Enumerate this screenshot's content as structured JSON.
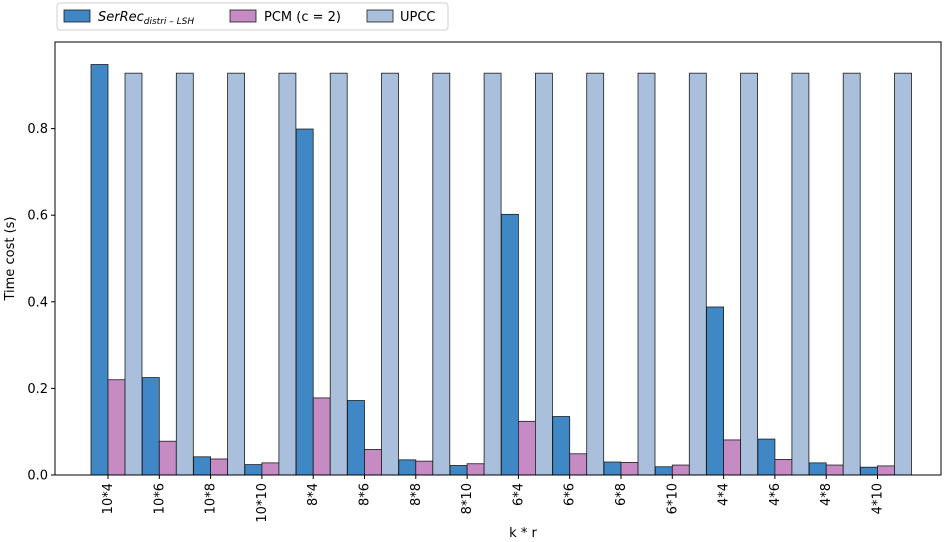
{
  "chart_data": {
    "type": "bar",
    "title": "",
    "xlabel": "k * r",
    "ylabel": "Time cost (s)",
    "ylim": [
      0,
      1.0
    ],
    "yticks": [
      "0.0",
      "0.2",
      "0.4",
      "0.6",
      "0.8"
    ],
    "categories": [
      "10*4",
      "10*6",
      "10*8",
      "10*10",
      "8*4",
      "8*6",
      "8*8",
      "8*10",
      "6*4",
      "6*6",
      "6*8",
      "6*10",
      "4*4",
      "4*6",
      "4*8",
      "4*10"
    ],
    "legend_position": "top-left",
    "series": [
      {
        "name_main": "SerRec",
        "name_sub": "distri – LSH",
        "color": "#3f88c5",
        "values": [
          0.948,
          0.225,
          0.042,
          0.024,
          0.799,
          0.172,
          0.035,
          0.022,
          0.602,
          0.135,
          0.03,
          0.019,
          0.388,
          0.083,
          0.028,
          0.018
        ]
      },
      {
        "name": "PCM (c = 2)",
        "color": "#c58bc2",
        "values": [
          0.22,
          0.078,
          0.037,
          0.028,
          0.178,
          0.059,
          0.032,
          0.026,
          0.124,
          0.049,
          0.029,
          0.023,
          0.081,
          0.036,
          0.023,
          0.021
        ]
      },
      {
        "name": "UPCC",
        "color": "#a9bfdb",
        "values": [
          0.928,
          0.928,
          0.928,
          0.928,
          0.928,
          0.928,
          0.928,
          0.928,
          0.928,
          0.928,
          0.928,
          0.928,
          0.928,
          0.928,
          0.928,
          0.928
        ]
      }
    ]
  }
}
